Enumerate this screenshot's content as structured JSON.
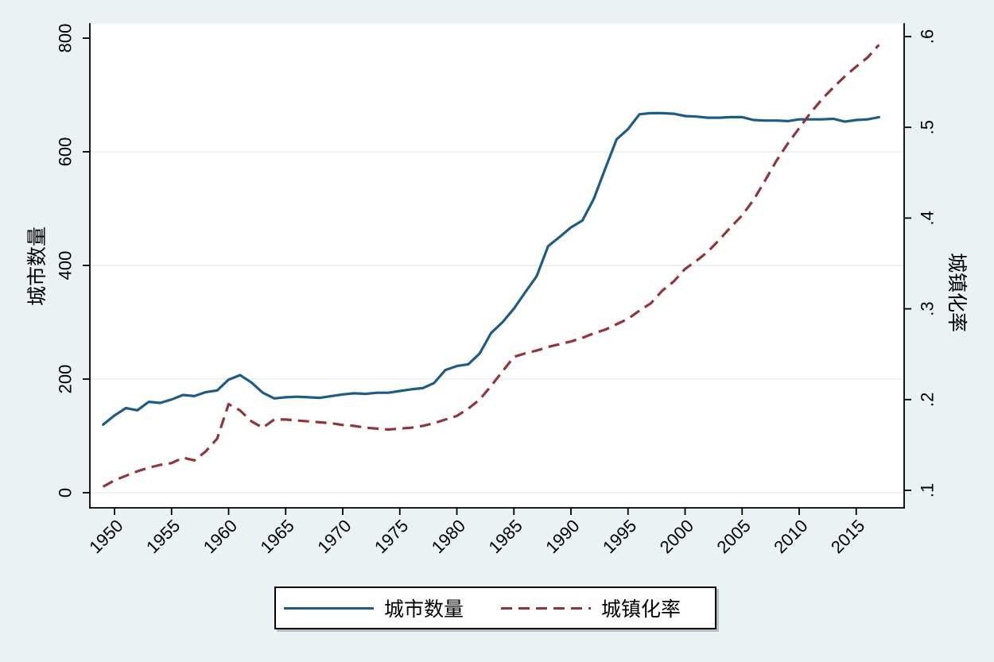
{
  "figure": {
    "background": "#eaf2f3",
    "plot_background": "#ffffff",
    "grid_color": "#e6eff0",
    "axis_color": "#000000"
  },
  "chart_data": {
    "type": "line",
    "title": "",
    "x": [
      1949,
      1950,
      1951,
      1952,
      1953,
      1954,
      1955,
      1956,
      1957,
      1958,
      1959,
      1960,
      1961,
      1962,
      1963,
      1964,
      1965,
      1966,
      1967,
      1968,
      1969,
      1970,
      1971,
      1972,
      1973,
      1974,
      1975,
      1976,
      1977,
      1978,
      1979,
      1980,
      1981,
      1982,
      1983,
      1984,
      1985,
      1986,
      1987,
      1988,
      1989,
      1990,
      1991,
      1992,
      1993,
      1994,
      1995,
      1996,
      1997,
      1998,
      1999,
      2000,
      2001,
      2002,
      2003,
      2004,
      2005,
      2006,
      2007,
      2008,
      2009,
      2010,
      2011,
      2012,
      2013,
      2014,
      2015,
      2016,
      2017
    ],
    "series": [
      {
        "name": "城市数量",
        "axis": "left",
        "color": "#1e5c83",
        "line_style": "solid",
        "values": [
          120,
          136,
          149,
          145,
          160,
          158,
          164,
          172,
          170,
          177,
          180,
          199,
          207,
          194,
          176,
          166,
          168,
          169,
          168,
          167,
          170,
          173,
          175,
          174,
          176,
          176,
          179,
          182,
          184,
          193,
          216,
          223,
          226,
          245,
          281,
          300,
          324,
          353,
          381,
          434,
          450,
          467,
          479,
          517,
          570,
          622,
          640,
          666,
          668,
          668,
          667,
          663,
          662,
          660,
          660,
          661,
          661,
          656,
          655,
          655,
          654,
          657,
          657,
          657,
          658,
          653,
          656,
          657,
          661
        ]
      },
      {
        "name": "城镇化率",
        "axis": "right",
        "color": "#90353b",
        "line_style": "dashed",
        "values": [
          0.104,
          0.111,
          0.116,
          0.121,
          0.125,
          0.128,
          0.13,
          0.136,
          0.133,
          0.143,
          0.157,
          0.195,
          0.188,
          0.176,
          0.169,
          0.178,
          0.178,
          0.177,
          0.176,
          0.175,
          0.174,
          0.172,
          0.171,
          0.169,
          0.168,
          0.167,
          0.168,
          0.169,
          0.171,
          0.174,
          0.178,
          0.182,
          0.19,
          0.2,
          0.215,
          0.231,
          0.247,
          0.251,
          0.254,
          0.258,
          0.261,
          0.264,
          0.268,
          0.273,
          0.277,
          0.283,
          0.289,
          0.298,
          0.306,
          0.32,
          0.33,
          0.344,
          0.353,
          0.363,
          0.376,
          0.39,
          0.403,
          0.42,
          0.441,
          0.463,
          0.482,
          0.499,
          0.516,
          0.531,
          0.544,
          0.556,
          0.567,
          0.577,
          0.591
        ]
      }
    ],
    "x_axis": {
      "tick_years": [
        1950,
        1955,
        1960,
        1965,
        1970,
        1975,
        1980,
        1985,
        1990,
        1995,
        2000,
        2005,
        2010,
        2015
      ],
      "tick_labels": [
        "1950",
        "1955",
        "1960",
        "1965",
        "1970",
        "1975",
        "1980",
        "1985",
        "1990",
        "1995",
        "2000",
        "2005",
        "2010",
        "2015"
      ],
      "label_angle_deg": -45
    },
    "y_axis_left": {
      "title": "城市数量",
      "range": [
        0,
        800
      ],
      "tick_values": [
        0,
        200,
        400,
        600,
        800
      ],
      "tick_labels": [
        "0",
        "200",
        "400",
        "600",
        "800"
      ],
      "gridline_values": [
        0,
        200,
        400,
        600
      ]
    },
    "y_axis_right": {
      "title": "城镇化率",
      "range": [
        0.1,
        0.6
      ],
      "tick_values": [
        0.1,
        0.2,
        0.3,
        0.4,
        0.5,
        0.6
      ],
      "tick_labels": [
        ".1",
        ".2",
        ".3",
        ".4",
        ".5",
        ".6"
      ]
    },
    "legend": {
      "position": "bottom",
      "entries": [
        {
          "label": "城市数量",
          "color": "#1e5c83",
          "style": "solid"
        },
        {
          "label": "城镇化率",
          "color": "#90353b",
          "style": "dashed"
        }
      ]
    }
  }
}
